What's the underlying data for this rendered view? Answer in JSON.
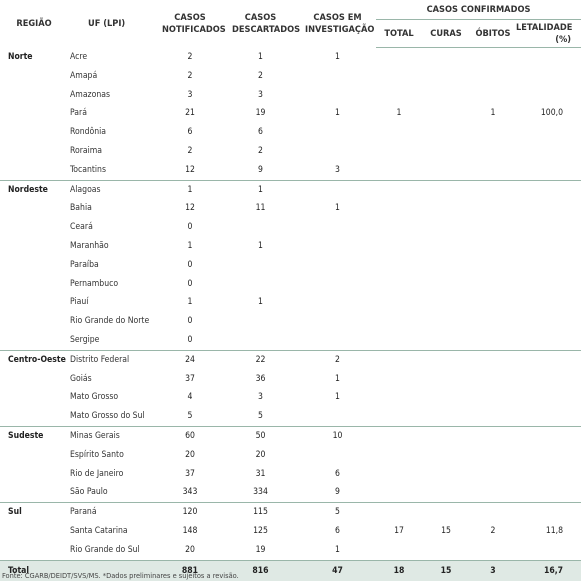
{
  "headers": {
    "regiao": "REGIÃO",
    "uf": "UF (LPI)",
    "notificados": "CASOS NOTIFICADOS",
    "descartados": "CASOS DESCARTADOS",
    "investigacao": "CASOS EM INVESTIGAÇÃO",
    "confirmados": "CASOS CONFIRMADOS",
    "total": "TOTAL",
    "curas": "CURAS",
    "obitos": "ÓBITOS",
    "letalidade": "LETALIDADE (%)"
  },
  "rows": [
    {
      "regiao": "Norte",
      "uf": "Acre",
      "notificados": "2",
      "descartados": "1",
      "investigacao": "1",
      "total": "",
      "curas": "",
      "obitos": "",
      "letalidade": ""
    },
    {
      "regiao": "",
      "uf": "Amapá",
      "notificados": "2",
      "descartados": "2",
      "investigacao": "",
      "total": "",
      "curas": "",
      "obitos": "",
      "letalidade": ""
    },
    {
      "regiao": "",
      "uf": "Amazonas",
      "notificados": "3",
      "descartados": "3",
      "investigacao": "",
      "total": "",
      "curas": "",
      "obitos": "",
      "letalidade": ""
    },
    {
      "regiao": "",
      "uf": "Pará",
      "notificados": "21",
      "descartados": "19",
      "investigacao": "1",
      "total": "1",
      "curas": "",
      "obitos": "1",
      "letalidade": "100,0"
    },
    {
      "regiao": "",
      "uf": "Rondônia",
      "notificados": "6",
      "descartados": "6",
      "investigacao": "",
      "total": "",
      "curas": "",
      "obitos": "",
      "letalidade": ""
    },
    {
      "regiao": "",
      "uf": "Roraima",
      "notificados": "2",
      "descartados": "2",
      "investigacao": "",
      "total": "",
      "curas": "",
      "obitos": "",
      "letalidade": ""
    },
    {
      "regiao": "",
      "uf": "Tocantins",
      "notificados": "12",
      "descartados": "9",
      "investigacao": "3",
      "total": "",
      "curas": "",
      "obitos": "",
      "letalidade": ""
    },
    {
      "regiao": "Nordeste",
      "uf": "Alagoas",
      "notificados": "1",
      "descartados": "1",
      "investigacao": "",
      "total": "",
      "curas": "",
      "obitos": "",
      "letalidade": ""
    },
    {
      "regiao": "",
      "uf": "Bahia",
      "notificados": "12",
      "descartados": "11",
      "investigacao": "1",
      "total": "",
      "curas": "",
      "obitos": "",
      "letalidade": ""
    },
    {
      "regiao": "",
      "uf": "Ceará",
      "notificados": "0",
      "descartados": "",
      "investigacao": "",
      "total": "",
      "curas": "",
      "obitos": "",
      "letalidade": ""
    },
    {
      "regiao": "",
      "uf": "Maranhão",
      "notificados": "1",
      "descartados": "1",
      "investigacao": "",
      "total": "",
      "curas": "",
      "obitos": "",
      "letalidade": ""
    },
    {
      "regiao": "",
      "uf": "Paraíba",
      "notificados": "0",
      "descartados": "",
      "investigacao": "",
      "total": "",
      "curas": "",
      "obitos": "",
      "letalidade": ""
    },
    {
      "regiao": "",
      "uf": "Pernambuco",
      "notificados": "0",
      "descartados": "",
      "investigacao": "",
      "total": "",
      "curas": "",
      "obitos": "",
      "letalidade": ""
    },
    {
      "regiao": "",
      "uf": "Piauí",
      "notificados": "1",
      "descartados": "1",
      "investigacao": "",
      "total": "",
      "curas": "",
      "obitos": "",
      "letalidade": ""
    },
    {
      "regiao": "",
      "uf": "Rio Grande do Norte",
      "notificados": "0",
      "descartados": "",
      "investigacao": "",
      "total": "",
      "curas": "",
      "obitos": "",
      "letalidade": ""
    },
    {
      "regiao": "",
      "uf": "Sergipe",
      "notificados": "0",
      "descartados": "",
      "investigacao": "",
      "total": "",
      "curas": "",
      "obitos": "",
      "letalidade": ""
    },
    {
      "regiao": "Centro-Oeste",
      "uf": "Distrito Federal",
      "notificados": "24",
      "descartados": "22",
      "investigacao": "2",
      "total": "",
      "curas": "",
      "obitos": "",
      "letalidade": ""
    },
    {
      "regiao": "",
      "uf": "Goiás",
      "notificados": "37",
      "descartados": "36",
      "investigacao": "1",
      "total": "",
      "curas": "",
      "obitos": "",
      "letalidade": ""
    },
    {
      "regiao": "",
      "uf": "Mato Grosso",
      "notificados": "4",
      "descartados": "3",
      "investigacao": "1",
      "total": "",
      "curas": "",
      "obitos": "",
      "letalidade": ""
    },
    {
      "regiao": "",
      "uf": "Mato Grosso do Sul",
      "notificados": "5",
      "descartados": "5",
      "investigacao": "",
      "total": "",
      "curas": "",
      "obitos": "",
      "letalidade": ""
    },
    {
      "regiao": "Sudeste",
      "uf": "Minas Gerais",
      "notificados": "60",
      "descartados": "50",
      "investigacao": "10",
      "total": "",
      "curas": "",
      "obitos": "",
      "letalidade": ""
    },
    {
      "regiao": "",
      "uf": "Espírito Santo",
      "notificados": "20",
      "descartados": "20",
      "investigacao": "",
      "total": "",
      "curas": "",
      "obitos": "",
      "letalidade": ""
    },
    {
      "regiao": "",
      "uf": "Rio de Janeiro",
      "notificados": "37",
      "descartados": "31",
      "investigacao": "6",
      "total": "",
      "curas": "",
      "obitos": "",
      "letalidade": ""
    },
    {
      "regiao": "",
      "uf": "São Paulo",
      "notificados": "343",
      "descartados": "334",
      "investigacao": "9",
      "total": "",
      "curas": "",
      "obitos": "",
      "letalidade": ""
    },
    {
      "regiao": "Sul",
      "uf": "Paraná",
      "notificados": "120",
      "descartados": "115",
      "investigacao": "5",
      "total": "",
      "curas": "",
      "obitos": "",
      "letalidade": ""
    },
    {
      "regiao": "",
      "uf": "Santa Catarina",
      "notificados": "148",
      "descartados": "125",
      "investigacao": "6",
      "total": "17",
      "curas": "15",
      "obitos": "2",
      "letalidade": "11,8"
    },
    {
      "regiao": "",
      "uf": "Rio Grande do Sul",
      "notificados": "20",
      "descartados": "19",
      "investigacao": "1",
      "total": "",
      "curas": "",
      "obitos": "",
      "letalidade": ""
    }
  ],
  "totals": {
    "label": "Total",
    "notificados": "881",
    "descartados": "816",
    "investigacao": "47",
    "total": "18",
    "curas": "15",
    "obitos": "3",
    "letalidade": "16,7"
  },
  "footnote": "Fonte: CGARB/DEIDT/SVS/MS. *Dados preliminares e sujeitos a revisão."
}
